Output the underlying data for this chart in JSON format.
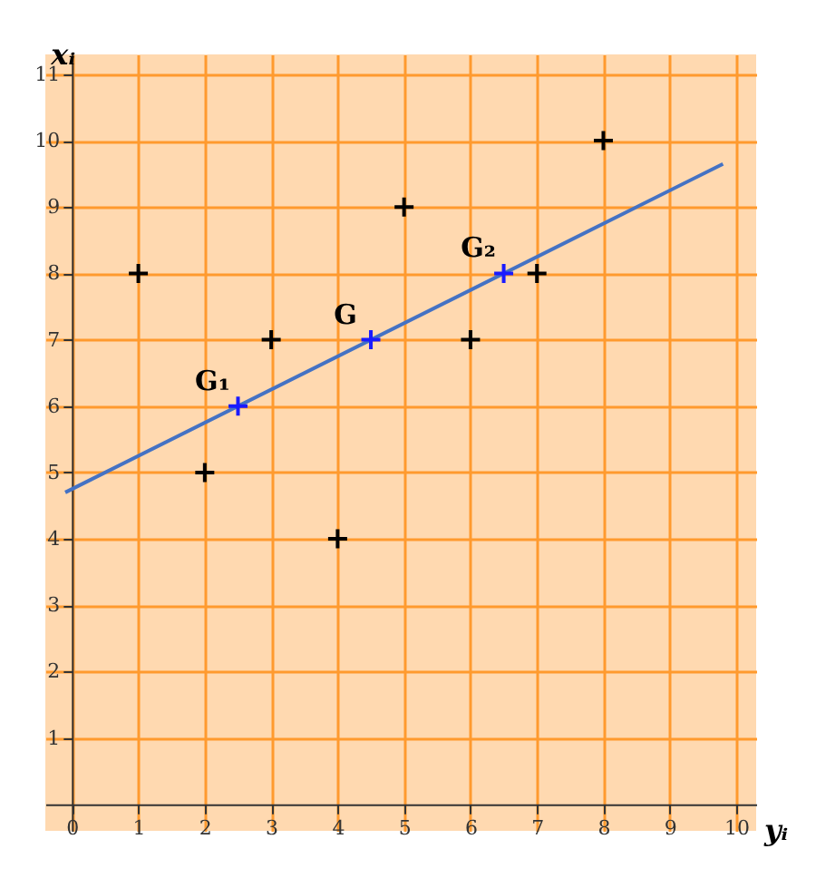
{
  "chart_data": {
    "type": "scatter",
    "xlabel": "yᵢ",
    "ylabel": "xᵢ",
    "xlim": [
      -0.4,
      10.3
    ],
    "ylim": [
      -0.4,
      11.3
    ],
    "xticks": [
      0,
      1,
      2,
      3,
      4,
      5,
      6,
      7,
      8,
      9,
      10
    ],
    "yticks": [
      1,
      2,
      3,
      4,
      5,
      6,
      7,
      8,
      9,
      10,
      11
    ],
    "grid": true,
    "marker": "cross",
    "series": [
      {
        "type": "line",
        "color": "#4472c4",
        "marker": "none",
        "x": [
          -0.1,
          9.8
        ],
        "values": [
          4.7,
          9.65
        ]
      },
      {
        "type": "scatter",
        "color": "#000000",
        "x": [
          1,
          2,
          3,
          4,
          5,
          6,
          7,
          8
        ],
        "values": [
          8,
          5,
          7,
          4,
          9,
          7,
          8,
          10
        ]
      },
      {
        "type": "scatter",
        "color": "#1a1aff",
        "x": [
          2.5,
          4.5,
          6.5
        ],
        "values": [
          6,
          7,
          8
        ]
      }
    ],
    "annotations": [
      {
        "text": "G₁",
        "x": 2.5,
        "y": 6
      },
      {
        "text": "G",
        "x": 4.5,
        "y": 7
      },
      {
        "text": "G₂",
        "x": 6.5,
        "y": 8
      }
    ]
  }
}
